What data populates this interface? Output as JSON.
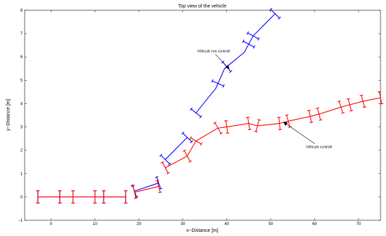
{
  "chart_data": {
    "type": "line",
    "title": "Top view of the vehicle",
    "xlabel": "x−Distance [m]",
    "ylabel": "y−Distance [m]",
    "xlim": [
      -6,
      75
    ],
    "ylim": [
      -1,
      8
    ],
    "xticks": [
      0,
      10,
      20,
      30,
      40,
      50,
      60,
      70
    ],
    "yticks": [
      -1,
      0,
      1,
      2,
      3,
      4,
      5,
      6,
      7,
      8
    ],
    "xtick_labels": [
      "0",
      "10",
      "20",
      "30",
      "40",
      "50",
      "60",
      "70"
    ],
    "ytick_labels": [
      "−1",
      "0",
      "1",
      "2",
      "3",
      "4",
      "5",
      "6",
      "7",
      "8"
    ],
    "grid": false,
    "series": [
      {
        "color": "#0000ff",
        "segments": [
          {
            "x": [
              -3,
              17
            ],
            "y": [
              0,
              0
            ]
          },
          {
            "x": [
              19,
              24.5
            ],
            "y": [
              0.25,
              0.6
            ]
          },
          {
            "x": [
              26,
              31
            ],
            "y": [
              1.6,
              2.55
            ]
          },
          {
            "x": [
              33,
              37.5,
              39.5,
              44,
              46,
              51
            ],
            "y": [
              3.6,
              4.65,
              5.5,
              6.2,
              6.9,
              7.85
            ]
          }
        ],
        "marker_x": [
          -3,
          2,
          5,
          10,
          12,
          17,
          19,
          24.5,
          26,
          31,
          33,
          38,
          40,
          45,
          46,
          51
        ]
      },
      {
        "color": "#ff0000",
        "segments": [
          {
            "x": [
              -3,
              17
            ],
            "y": [
              0,
              0
            ]
          },
          {
            "x": [
              19,
              24.5
            ],
            "y": [
              0.2,
              0.45
            ]
          },
          {
            "x": [
              26,
              31,
              33,
              38,
              40,
              45,
              47,
              52,
              54,
              59,
              61,
              66,
              68,
              71,
              75
            ],
            "y": [
              1.25,
              1.75,
              2.4,
              2.95,
              3.0,
              3.15,
              3.05,
              3.15,
              3.25,
              3.45,
              3.55,
              3.85,
              3.95,
              4.1,
              4.25
            ]
          }
        ],
        "marker_x": [
          -3,
          2,
          5,
          10,
          12,
          17,
          19,
          24.5,
          26,
          31,
          33,
          38,
          40,
          45,
          47,
          52,
          54,
          59,
          61,
          66,
          68,
          71,
          75
        ]
      }
    ],
    "annotations": [
      {
        "text": "Véhicule non controlé",
        "text_x": 37,
        "text_y": 6.2,
        "arrow_to_x": 40.5,
        "arrow_to_y": 5.5
      },
      {
        "text": "Véhicule controlé",
        "text_x": 61,
        "text_y": 2.1,
        "arrow_to_x": 53,
        "arrow_to_y": 3.2
      }
    ]
  }
}
